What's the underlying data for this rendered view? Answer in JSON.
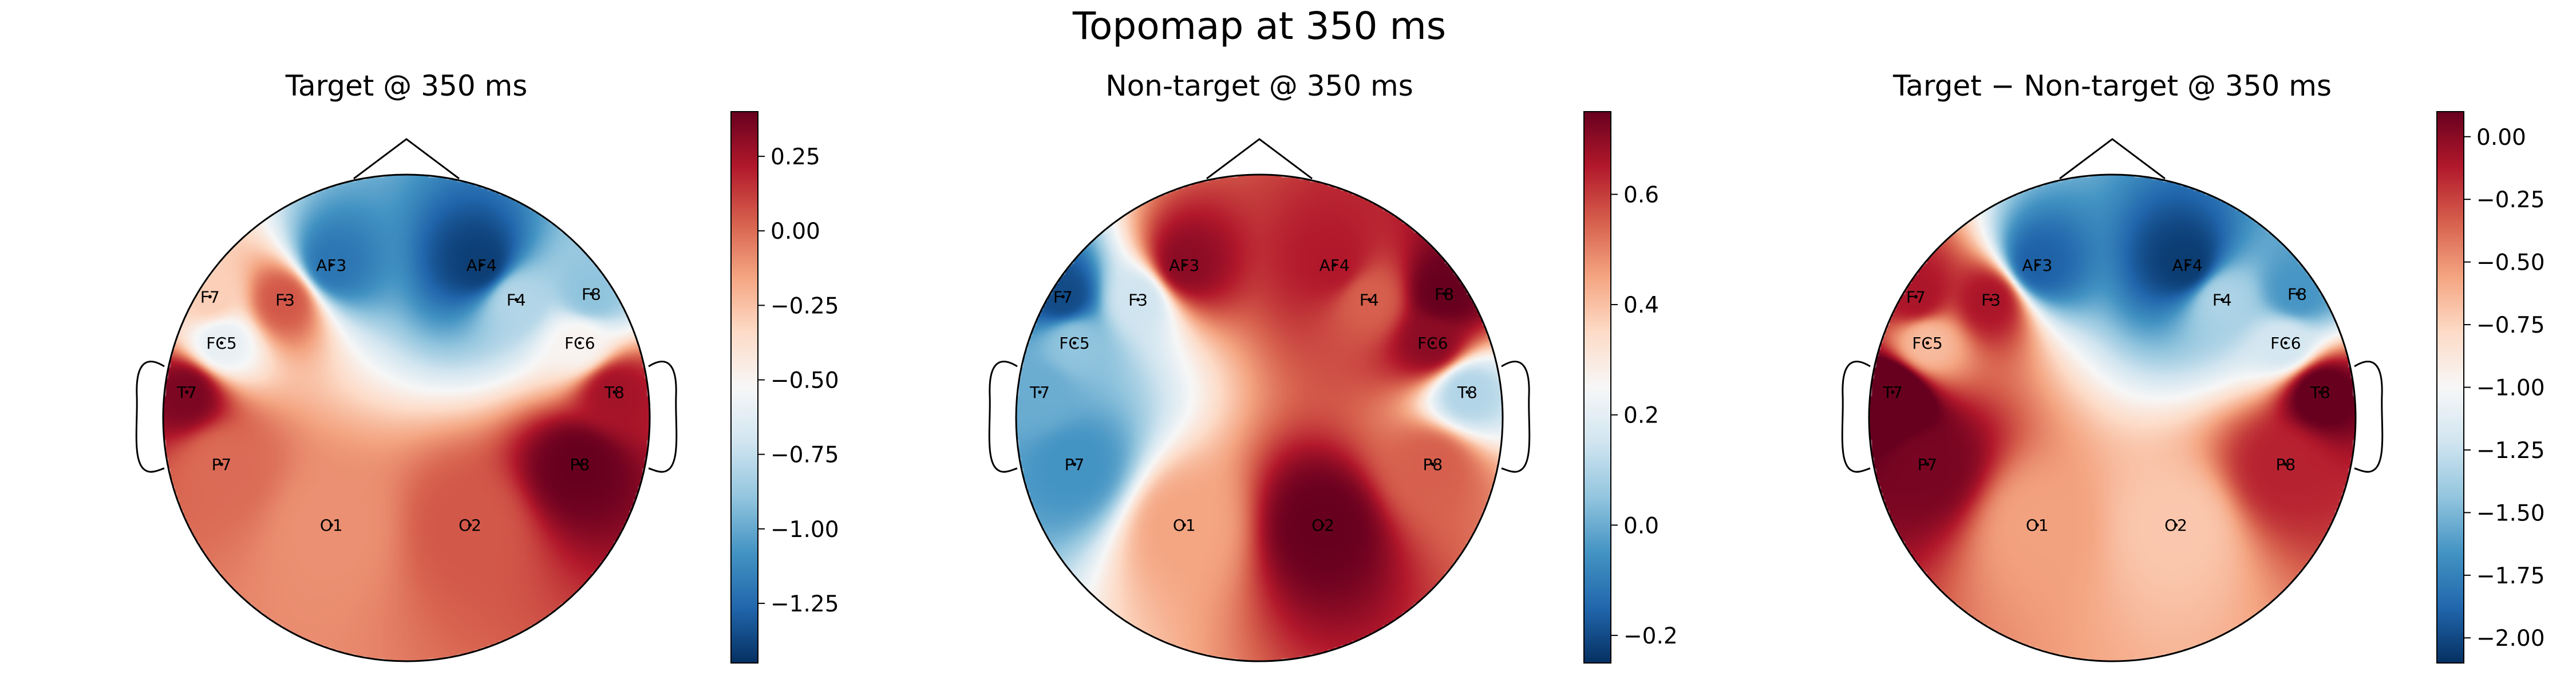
{
  "figure": {
    "suptitle": "Topomap at 350 ms"
  },
  "chart_data": [
    {
      "type": "heatmap",
      "title": "Target @ 350 ms",
      "colormap": "RdBu_r",
      "vlim": [
        -1.45,
        0.4
      ],
      "colorbar_ticks": [
        -1.25,
        -1.0,
        -0.75,
        -0.5,
        -0.25,
        0.0,
        0.25
      ],
      "colorbar_ticklabels": [
        "−1.25",
        "−1.00",
        "−0.75",
        "−0.50",
        "−0.25",
        "0.00",
        "0.25"
      ],
      "channels": [
        "AF3",
        "AF4",
        "F7",
        "F3",
        "F4",
        "F8",
        "FC5",
        "FC6",
        "T7",
        "T8",
        "P7",
        "P8",
        "O1",
        "O2"
      ],
      "values": [
        -1.2,
        -1.4,
        -0.3,
        0.05,
        -0.8,
        -0.9,
        -0.6,
        -0.5,
        0.35,
        0.25,
        0.0,
        0.4,
        -0.1,
        0.05
      ]
    },
    {
      "type": "heatmap",
      "title": "Non-target @ 350 ms",
      "colormap": "RdBu_r",
      "vlim": [
        -0.25,
        0.75
      ],
      "colorbar_ticks": [
        -0.2,
        0.0,
        0.2,
        0.4,
        0.6
      ],
      "colorbar_ticklabels": [
        "−0.2",
        "0.0",
        "0.2",
        "0.4",
        "0.6"
      ],
      "channels": [
        "AF3",
        "AF4",
        "F7",
        "F3",
        "F4",
        "F8",
        "FC5",
        "FC6",
        "T7",
        "T8",
        "P7",
        "P8",
        "O1",
        "O2"
      ],
      "values": [
        0.7,
        0.65,
        -0.2,
        0.15,
        0.55,
        0.75,
        0.05,
        0.7,
        0.0,
        0.1,
        -0.05,
        0.55,
        0.45,
        0.75
      ]
    },
    {
      "type": "heatmap",
      "title": "Target − Non-target @ 350 ms",
      "colormap": "RdBu_r",
      "vlim": [
        -2.1,
        0.1
      ],
      "colorbar_ticks": [
        -2.0,
        -1.75,
        -1.5,
        -1.25,
        -1.0,
        -0.75,
        -0.5,
        -0.25,
        0.0
      ],
      "colorbar_ticklabels": [
        "−2.00",
        "−1.75",
        "−1.50",
        "−1.25",
        "−1.00",
        "−0.75",
        "−0.50",
        "−0.25",
        "0.00"
      ],
      "channels": [
        "AF3",
        "AF4",
        "F7",
        "F3",
        "F4",
        "F8",
        "FC5",
        "FC6",
        "T7",
        "T8",
        "P7",
        "P8",
        "O1",
        "O2"
      ],
      "values": [
        -1.9,
        -2.05,
        -0.1,
        -0.1,
        -1.35,
        -1.65,
        -0.65,
        -1.2,
        0.35,
        0.15,
        0.05,
        -0.15,
        -0.55,
        -0.7
      ]
    }
  ]
}
